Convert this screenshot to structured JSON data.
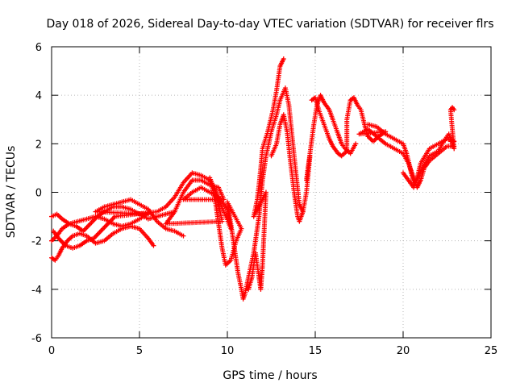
{
  "chart_data": {
    "type": "scatter",
    "title": "Day 018 of 2026, Sidereal Day-to-day VTEC variation (SDTVAR) for receiver flrs",
    "xlabel": "GPS time / hours",
    "ylabel": "SDTVAR / TECUs",
    "xlim": [
      0,
      25
    ],
    "ylim": [
      -6,
      6
    ],
    "x_ticks": [
      0,
      5,
      10,
      15,
      20,
      25
    ],
    "y_ticks": [
      -6,
      -4,
      -2,
      0,
      2,
      4,
      6
    ],
    "x_tick_labels": [
      "0",
      "5",
      "10",
      "15",
      "20",
      "25"
    ],
    "y_tick_labels": [
      "-6",
      "-4",
      "-2",
      "0",
      "2",
      "4",
      "6"
    ],
    "grid": true,
    "marker": "+",
    "series": [
      {
        "name": "SDTVAR",
        "color": "#ff0000",
        "points": [
          [
            0.0,
            -2.7
          ],
          [
            0.2,
            -2.8
          ],
          [
            0.4,
            -2.6
          ],
          [
            0.6,
            -2.3
          ],
          [
            0.9,
            -2.0
          ],
          [
            1.2,
            -1.8
          ],
          [
            1.6,
            -1.7
          ],
          [
            2.0,
            -1.8
          ],
          [
            2.5,
            -2.1
          ],
          [
            3.0,
            -2.0
          ],
          [
            3.5,
            -1.7
          ],
          [
            4.0,
            -1.5
          ],
          [
            4.5,
            -1.4
          ],
          [
            5.0,
            -1.5
          ],
          [
            5.5,
            -1.9
          ],
          [
            5.8,
            -2.2
          ],
          [
            0.0,
            -2.0
          ],
          [
            0.3,
            -1.8
          ],
          [
            0.6,
            -1.5
          ],
          [
            1.0,
            -1.3
          ],
          [
            1.4,
            -1.4
          ],
          [
            1.8,
            -1.6
          ],
          [
            2.2,
            -1.3
          ],
          [
            2.6,
            -1.0
          ],
          [
            3.0,
            -0.8
          ],
          [
            3.5,
            -0.6
          ],
          [
            4.0,
            -0.6
          ],
          [
            4.5,
            -0.7
          ],
          [
            5.0,
            -0.9
          ],
          [
            5.5,
            -1.1
          ],
          [
            6.0,
            -1.0
          ],
          [
            6.5,
            -0.9
          ],
          [
            7.0,
            -0.8
          ],
          [
            0.0,
            -1.0
          ],
          [
            0.3,
            -0.9
          ],
          [
            0.6,
            -1.1
          ],
          [
            1.0,
            -1.3
          ],
          [
            1.5,
            -1.2
          ],
          [
            2.0,
            -1.1
          ],
          [
            2.5,
            -1.0
          ],
          [
            3.0,
            -1.1
          ],
          [
            3.5,
            -1.3
          ],
          [
            4.0,
            -1.4
          ],
          [
            4.5,
            -1.3
          ],
          [
            5.0,
            -1.1
          ],
          [
            5.5,
            -0.9
          ],
          [
            2.5,
            -0.8
          ],
          [
            3.0,
            -0.6
          ],
          [
            3.5,
            -0.5
          ],
          [
            4.0,
            -0.4
          ],
          [
            4.5,
            -0.3
          ],
          [
            5.0,
            -0.5
          ],
          [
            5.5,
            -0.7
          ],
          [
            6.0,
            -1.2
          ],
          [
            6.5,
            -1.5
          ],
          [
            7.0,
            -1.6
          ],
          [
            7.5,
            -1.8
          ],
          [
            0.1,
            -1.6
          ],
          [
            0.4,
            -1.9
          ],
          [
            0.8,
            -2.2
          ],
          [
            1.2,
            -2.3
          ],
          [
            1.6,
            -2.2
          ],
          [
            2.0,
            -2.0
          ],
          [
            2.4,
            -1.9
          ],
          [
            2.8,
            -1.6
          ],
          [
            3.2,
            -1.3
          ],
          [
            3.6,
            -1.0
          ],
          [
            6.0,
            -0.8
          ],
          [
            6.5,
            -0.6
          ],
          [
            7.0,
            -0.2
          ],
          [
            7.5,
            0.4
          ],
          [
            8.0,
            0.8
          ],
          [
            8.5,
            0.7
          ],
          [
            9.0,
            0.5
          ],
          [
            9.3,
            0.1
          ],
          [
            9.5,
            -0.5
          ],
          [
            9.7,
            -1.2
          ],
          [
            6.5,
            -1.3
          ],
          [
            7.0,
            -0.8
          ],
          [
            7.5,
            0.0
          ],
          [
            8.0,
            0.5
          ],
          [
            8.5,
            0.5
          ],
          [
            9.0,
            0.3
          ],
          [
            9.5,
            0.2
          ],
          [
            9.8,
            -0.3
          ],
          [
            7.5,
            -0.3
          ],
          [
            8.0,
            0.0
          ],
          [
            8.5,
            0.2
          ],
          [
            9.0,
            0.0
          ],
          [
            9.5,
            -0.2
          ],
          [
            10.0,
            -0.7
          ],
          [
            10.2,
            -1.5
          ],
          [
            9.0,
            0.6
          ],
          [
            9.3,
            -0.3
          ],
          [
            9.5,
            -1.3
          ],
          [
            9.7,
            -2.3
          ],
          [
            9.9,
            -3.0
          ],
          [
            10.2,
            -2.8
          ],
          [
            10.5,
            -2.0
          ],
          [
            10.8,
            -1.5
          ],
          [
            10.0,
            -0.4
          ],
          [
            10.2,
            -1.3
          ],
          [
            10.4,
            -2.3
          ],
          [
            10.6,
            -3.3
          ],
          [
            10.8,
            -4.0
          ],
          [
            10.9,
            -4.4
          ],
          [
            11.0,
            -4.2
          ],
          [
            11.2,
            -3.5
          ],
          [
            11.5,
            -2.5
          ],
          [
            11.8,
            -1.0
          ],
          [
            12.0,
            0.5
          ],
          [
            12.2,
            1.5
          ],
          [
            12.5,
            2.5
          ],
          [
            12.8,
            3.2
          ],
          [
            13.0,
            3.8
          ],
          [
            13.3,
            4.3
          ],
          [
            13.5,
            3.6
          ],
          [
            13.7,
            2.2
          ],
          [
            13.9,
            0.8
          ],
          [
            14.1,
            -0.5
          ],
          [
            14.3,
            -0.8
          ],
          [
            11.2,
            -4.0
          ],
          [
            11.4,
            -3.5
          ],
          [
            11.6,
            -2.5
          ],
          [
            11.8,
            -3.5
          ],
          [
            11.9,
            -4.0
          ],
          [
            12.0,
            -3.0
          ],
          [
            12.1,
            -1.5
          ],
          [
            12.2,
            0.0
          ],
          [
            11.5,
            -1.0
          ],
          [
            11.7,
            -0.3
          ],
          [
            11.8,
            0.3
          ],
          [
            11.9,
            1.0
          ],
          [
            12.0,
            1.8
          ],
          [
            12.3,
            2.5
          ],
          [
            12.6,
            3.4
          ],
          [
            12.8,
            4.2
          ],
          [
            13.0,
            5.2
          ],
          [
            13.2,
            5.5
          ],
          [
            12.5,
            1.5
          ],
          [
            12.8,
            2.0
          ],
          [
            13.0,
            2.8
          ],
          [
            13.2,
            3.2
          ],
          [
            13.4,
            2.5
          ],
          [
            13.6,
            1.2
          ],
          [
            13.8,
            0.0
          ],
          [
            14.0,
            -1.0
          ],
          [
            14.1,
            -1.2
          ],
          [
            14.3,
            -0.8
          ],
          [
            14.5,
            0.0
          ],
          [
            14.7,
            1.5
          ],
          [
            14.5,
            0.5
          ],
          [
            14.7,
            1.6
          ],
          [
            14.9,
            2.7
          ],
          [
            15.1,
            3.6
          ],
          [
            15.3,
            4.0
          ],
          [
            15.5,
            3.7
          ],
          [
            15.8,
            3.4
          ],
          [
            16.0,
            3.0
          ],
          [
            16.3,
            2.4
          ],
          [
            16.5,
            2.0
          ],
          [
            16.7,
            1.8
          ],
          [
            17.0,
            1.6
          ],
          [
            17.3,
            2.0
          ],
          [
            14.8,
            3.8
          ],
          [
            15.0,
            3.9
          ],
          [
            15.2,
            3.4
          ],
          [
            15.5,
            2.8
          ],
          [
            15.8,
            2.2
          ],
          [
            16.0,
            1.9
          ],
          [
            16.3,
            1.6
          ],
          [
            16.5,
            1.5
          ],
          [
            16.8,
            1.7
          ],
          [
            16.8,
            3.0
          ],
          [
            17.0,
            3.8
          ],
          [
            17.2,
            3.9
          ],
          [
            17.4,
            3.6
          ],
          [
            17.6,
            3.4
          ],
          [
            17.8,
            2.8
          ],
          [
            18.0,
            2.3
          ],
          [
            18.3,
            2.1
          ],
          [
            18.6,
            2.3
          ],
          [
            19.0,
            2.5
          ],
          [
            17.5,
            2.4
          ],
          [
            18.0,
            2.6
          ],
          [
            18.5,
            2.3
          ],
          [
            19.0,
            2.0
          ],
          [
            19.5,
            1.8
          ],
          [
            20.0,
            1.6
          ],
          [
            20.3,
            1.2
          ],
          [
            20.6,
            0.6
          ],
          [
            20.8,
            0.2
          ],
          [
            21.0,
            0.5
          ],
          [
            21.2,
            1.0
          ],
          [
            21.5,
            1.3
          ],
          [
            22.0,
            1.6
          ],
          [
            22.5,
            1.9
          ],
          [
            22.9,
            1.9
          ],
          [
            18.0,
            2.8
          ],
          [
            18.5,
            2.7
          ],
          [
            19.0,
            2.4
          ],
          [
            19.5,
            2.2
          ],
          [
            20.0,
            2.0
          ],
          [
            20.2,
            1.6
          ],
          [
            20.4,
            1.0
          ],
          [
            20.6,
            0.4
          ],
          [
            20.8,
            0.6
          ],
          [
            21.0,
            1.2
          ],
          [
            21.5,
            1.8
          ],
          [
            22.0,
            2.0
          ],
          [
            22.5,
            2.2
          ],
          [
            22.9,
            2.1
          ],
          [
            20.0,
            0.8
          ],
          [
            20.3,
            0.5
          ],
          [
            20.6,
            0.2
          ],
          [
            21.0,
            0.9
          ],
          [
            21.5,
            1.5
          ],
          [
            22.0,
            1.7
          ],
          [
            22.4,
            2.2
          ],
          [
            22.6,
            2.4
          ],
          [
            22.9,
            1.8
          ],
          [
            22.7,
            3.4
          ],
          [
            22.8,
            3.5
          ],
          [
            22.9,
            3.4
          ]
        ]
      }
    ]
  }
}
